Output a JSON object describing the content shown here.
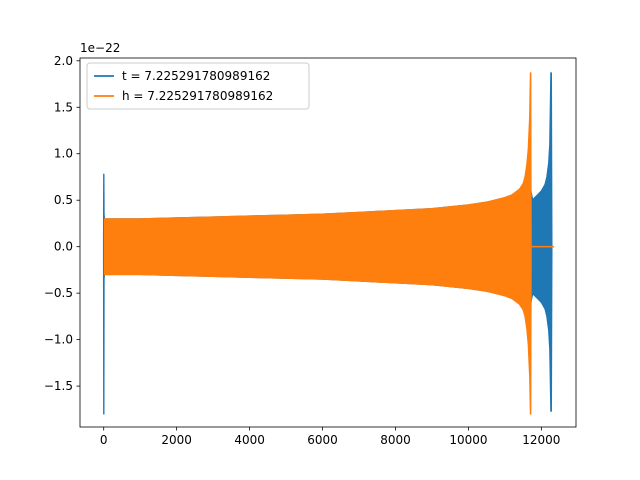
{
  "chart_data": {
    "type": "line",
    "title": "",
    "xlabel": "",
    "ylabel": "",
    "y_offset_text": "1e−22",
    "xlim": [
      -650,
      12950
    ],
    "ylim": [
      -1.94,
      2.03
    ],
    "grid": false,
    "legend_position": "upper-left",
    "x_ticks": [
      {
        "value": 0,
        "label": "0"
      },
      {
        "value": 2000,
        "label": "2000"
      },
      {
        "value": 4000,
        "label": "4000"
      },
      {
        "value": 6000,
        "label": "6000"
      },
      {
        "value": 8000,
        "label": "8000"
      },
      {
        "value": 10000,
        "label": "10000"
      },
      {
        "value": 12000,
        "label": "12000"
      }
    ],
    "y_ticks": [
      {
        "value": 2.0,
        "label": "2.0"
      },
      {
        "value": 1.5,
        "label": "1.5"
      },
      {
        "value": 1.0,
        "label": "1.0"
      },
      {
        "value": 0.5,
        "label": "0.5"
      },
      {
        "value": 0.0,
        "label": "0.0"
      },
      {
        "value": -0.5,
        "label": "−0.5"
      },
      {
        "value": -1.0,
        "label": "−1.0"
      },
      {
        "value": -1.5,
        "label": "−1.5"
      }
    ],
    "series": [
      {
        "name": "t = 7.225291780989162",
        "color": "#1f77b4",
        "x": [
          -5,
          0,
          5,
          10,
          20,
          40,
          100,
          500,
          1000,
          2000,
          3000,
          4000,
          5000,
          6000,
          7000,
          8000,
          9000,
          10000,
          10500,
          11000,
          11300,
          11500,
          11600,
          11700,
          11740,
          11760,
          11800,
          11900,
          12000,
          12100,
          12150,
          12200,
          12230,
          12260,
          12275,
          12290,
          12330
        ],
        "upper": [
          0.05,
          0.78,
          0.78,
          0.35,
          0.3,
          0.3,
          0.3,
          0.3,
          0.3,
          0.31,
          0.32,
          0.33,
          0.34,
          0.35,
          0.37,
          0.39,
          0.41,
          0.45,
          0.48,
          0.52,
          0.56,
          0.6,
          0.63,
          0.63,
          0.55,
          0.51,
          0.52,
          0.56,
          0.6,
          0.67,
          0.75,
          0.9,
          1.1,
          1.87,
          1.87,
          0.0,
          0.0
        ],
        "lower": [
          -0.05,
          -1.8,
          -1.8,
          -0.35,
          -0.3,
          -0.3,
          -0.3,
          -0.3,
          -0.3,
          -0.31,
          -0.32,
          -0.33,
          -0.34,
          -0.35,
          -0.37,
          -0.39,
          -0.41,
          -0.45,
          -0.48,
          -0.52,
          -0.56,
          -0.6,
          -0.63,
          -0.63,
          -0.55,
          -0.51,
          -0.52,
          -0.56,
          -0.6,
          -0.67,
          -0.75,
          -0.9,
          -1.1,
          -1.77,
          -1.77,
          0.0,
          0.0
        ]
      },
      {
        "name": "h = 7.225291780989162",
        "color": "#ff7f0e",
        "x": [
          20,
          40,
          100,
          500,
          1000,
          2000,
          3000,
          4000,
          5000,
          6000,
          7000,
          8000,
          9000,
          10000,
          10500,
          11000,
          11200,
          11400,
          11500,
          11550,
          11600,
          11640,
          11680,
          11700,
          11710,
          11720,
          11800,
          12000,
          12330
        ],
        "upper": [
          0.3,
          0.3,
          0.3,
          0.3,
          0.3,
          0.31,
          0.32,
          0.33,
          0.34,
          0.35,
          0.37,
          0.39,
          0.41,
          0.45,
          0.48,
          0.53,
          0.56,
          0.62,
          0.68,
          0.75,
          0.88,
          1.05,
          1.4,
          1.87,
          1.87,
          0.0,
          0.0,
          0.0,
          0.0
        ],
        "lower": [
          -0.3,
          -0.3,
          -0.3,
          -0.3,
          -0.3,
          -0.31,
          -0.32,
          -0.33,
          -0.34,
          -0.35,
          -0.37,
          -0.39,
          -0.41,
          -0.45,
          -0.48,
          -0.53,
          -0.56,
          -0.62,
          -0.68,
          -0.75,
          -0.88,
          -1.05,
          -1.4,
          -1.8,
          -1.8,
          0.0,
          0.0,
          0.0,
          0.0
        ]
      }
    ]
  }
}
